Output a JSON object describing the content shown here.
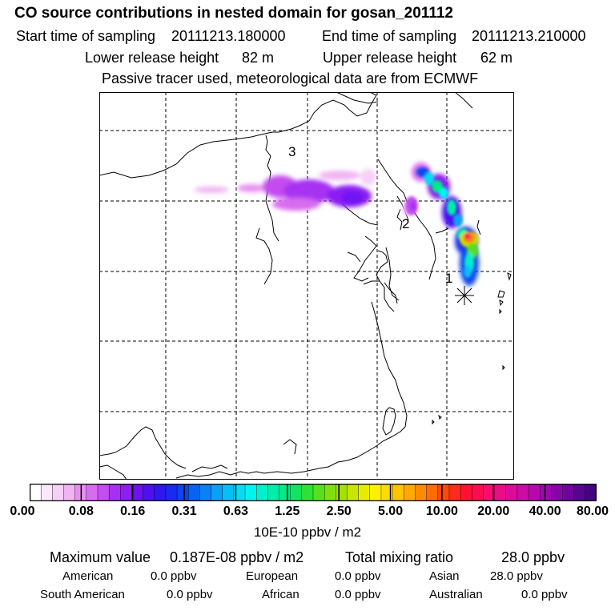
{
  "header": {
    "title": "CO  source contributions in nested domain for gosan_201112",
    "start_label": "Start time of sampling",
    "start_value": "20111213.180000",
    "end_label": "End time of sampling",
    "end_value": "20111213.210000",
    "lower_label": "Lower release height",
    "lower_value": "82 m",
    "upper_label": "Upper release height",
    "upper_value": "62 m",
    "note": "Passive tracer used, meteorological data are from ECMWF"
  },
  "map": {
    "labels": [
      "3",
      "2",
      "1"
    ],
    "receptor_marker": "asterisk"
  },
  "colorbar": {
    "tick_labels": [
      "0.00",
      "0.08",
      "0.16",
      "0.31",
      "0.63",
      "1.25",
      "2.50",
      "5.00",
      "10.00",
      "20.00",
      "40.00",
      "80.00"
    ],
    "units": "10E-10 ppbv / m2",
    "colors": [
      "#ffffff",
      "#fbe8fb",
      "#f6d0f6",
      "#f0b4f2",
      "#e890f0",
      "#d86cee",
      "#c44cf0",
      "#a830f2",
      "#8c1ef2",
      "#6e12f2",
      "#4e10f0",
      "#3216ee",
      "#1a2aee",
      "#0a46f0",
      "#0664f2",
      "#0882f4",
      "#0aa0f6",
      "#08bef4",
      "#04dcf2",
      "#00f4ee",
      "#00f0cc",
      "#00eeaa",
      "#00ea86",
      "#10e460",
      "#30e038",
      "#58e01e",
      "#80e00e",
      "#a4e206",
      "#c8e600",
      "#e6ec00",
      "#fef000",
      "#ffdc00",
      "#ffc400",
      "#ffaa00",
      "#ff8c00",
      "#ff6c00",
      "#ff4a0a",
      "#ff2a1e",
      "#ff1232",
      "#ff0c50",
      "#f80c70",
      "#ec0c88",
      "#dc0c98",
      "#cc0aa4",
      "#b808ac",
      "#a006ae",
      "#8804a8",
      "#70049c",
      "#58048e",
      "#420480"
    ]
  },
  "stats": {
    "max_label": "Maximum value",
    "max_value": "0.187E-08 ppbv / m2",
    "total_label": "Total mixing ratio",
    "total_value": "28.0 ppbv",
    "american_label": "American",
    "american_value": "0.0 ppbv",
    "european_label": "European",
    "european_value": "0.0 ppbv",
    "asian_label": "Asian",
    "asian_value": "28.0 ppbv",
    "south_american_label": "South American",
    "south_american_value": "0.0 ppbv",
    "african_label": "African",
    "african_value": "0.0 ppbv",
    "australian_label": "Australian",
    "australian_value": "0.0 ppbv"
  }
}
